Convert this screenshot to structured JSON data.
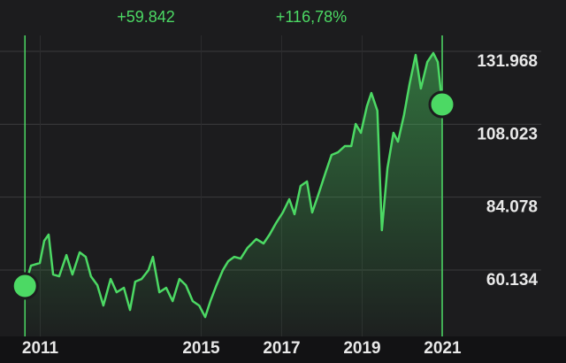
{
  "chart_data": {
    "type": "area",
    "annotations": [
      "+59.842",
      "+116,78%"
    ],
    "color": "#4cd964",
    "x": [
      2010.62,
      2010.77,
      2010.99,
      2011.1,
      2011.21,
      2011.32,
      2011.47,
      2011.65,
      2011.8,
      2011.98,
      2012.13,
      2012.26,
      2012.42,
      2012.57,
      2012.75,
      2012.9,
      2013.08,
      2013.23,
      2013.36,
      2013.52,
      2013.69,
      2013.8,
      2013.96,
      2014.13,
      2014.29,
      2014.46,
      2014.62,
      2014.79,
      2014.95,
      2015.1,
      2015.23,
      2015.38,
      2015.54,
      2015.67,
      2015.82,
      2015.98,
      2016.15,
      2016.37,
      2016.55,
      2016.7,
      2016.86,
      2017.03,
      2017.19,
      2017.32,
      2017.47,
      2017.63,
      2017.76,
      2017.91,
      2018.09,
      2018.24,
      2018.4,
      2018.57,
      2018.73,
      2018.84,
      2018.97,
      2019.12,
      2019.23,
      2019.38,
      2019.49,
      2019.63,
      2019.78,
      2019.89,
      2020.04,
      2020.18,
      2020.33,
      2020.46,
      2020.62,
      2020.77,
      2020.88,
      2020.99
    ],
    "values": [
      54879,
      61570,
      62443,
      69715,
      71752,
      58661,
      58079,
      65061,
      58661,
      65934,
      64479,
      58079,
      55170,
      48480,
      57207,
      52843,
      54298,
      47025,
      56334,
      57207,
      60116,
      64479,
      52843,
      54298,
      49934,
      57207,
      55170,
      49934,
      48480,
      44698,
      49934,
      55170,
      60116,
      63025,
      64479,
      63897,
      67388,
      70297,
      68843,
      71752,
      75533,
      79024,
      83388,
      78442,
      87751,
      89206,
      79024,
      84842,
      92115,
      97933,
      98805,
      100842,
      100842,
      108114,
      105205,
      113932,
      118296,
      112478,
      73206,
      93569,
      105205,
      102296,
      111023,
      121205,
      130804,
      119750,
      128477,
      131386,
      128477,
      114514
    ],
    "xlim": [
      2010.0,
      2021.1
    ],
    "ylim": [
      38320,
      137200
    ],
    "xticks": [
      2011,
      2015,
      2017,
      2019,
      2021
    ],
    "yticks": [
      {
        "value": 131968,
        "label": "131.968"
      },
      {
        "value": 108023,
        "label": "108.023"
      },
      {
        "value": 84078,
        "label": "84.078"
      },
      {
        "value": 60134,
        "label": "60.134"
      }
    ],
    "grid": true
  }
}
